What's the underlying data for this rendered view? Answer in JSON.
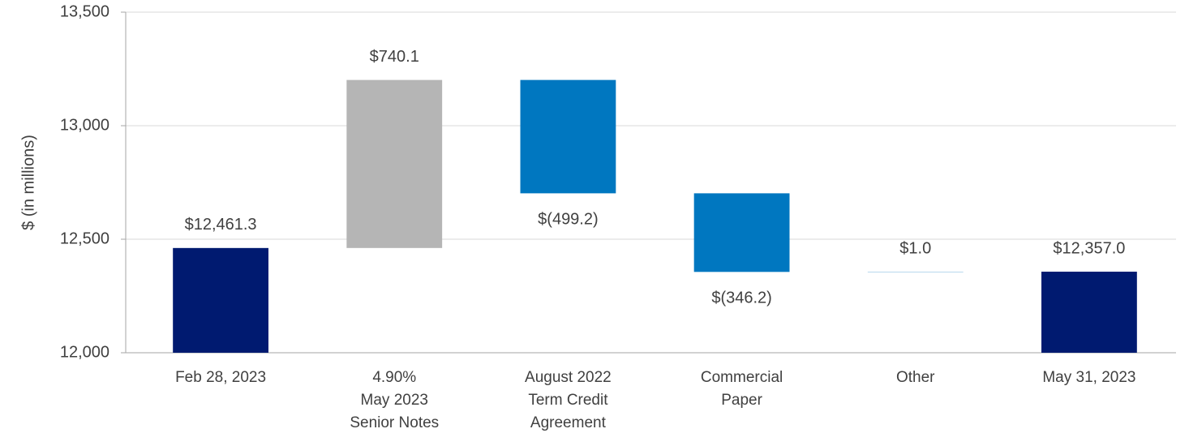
{
  "chart_data": {
    "type": "waterfall",
    "ylabel": "$ (in millions)",
    "categories": [
      "Feb 28, 2023",
      "4.90%\nMay 2023\nSenior Notes",
      "August 2022\nTerm Credit\nAgreement",
      "Commercial\nPaper",
      "Other",
      "May 31, 2023"
    ],
    "values": [
      12461.3,
      740.1,
      -499.2,
      -346.2,
      1.0,
      12357.0
    ],
    "value_labels": [
      "$12,461.3",
      "$740.1",
      "$(499.2)",
      "$(346.2)",
      "$1.0",
      "$12,357.0"
    ],
    "colors": [
      "#001a70",
      "#b5b5b5",
      "#0077c0",
      "#0077c0",
      "#0077c0",
      "#001a70"
    ],
    "ylim": [
      12000,
      13500
    ],
    "yticks": [
      {
        "value": 12000,
        "label": "12,000"
      },
      {
        "value": 12500,
        "label": "12,500"
      },
      {
        "value": 13000,
        "label": "13,000"
      },
      {
        "value": 13500,
        "label": "13,500"
      }
    ],
    "grid": true
  }
}
